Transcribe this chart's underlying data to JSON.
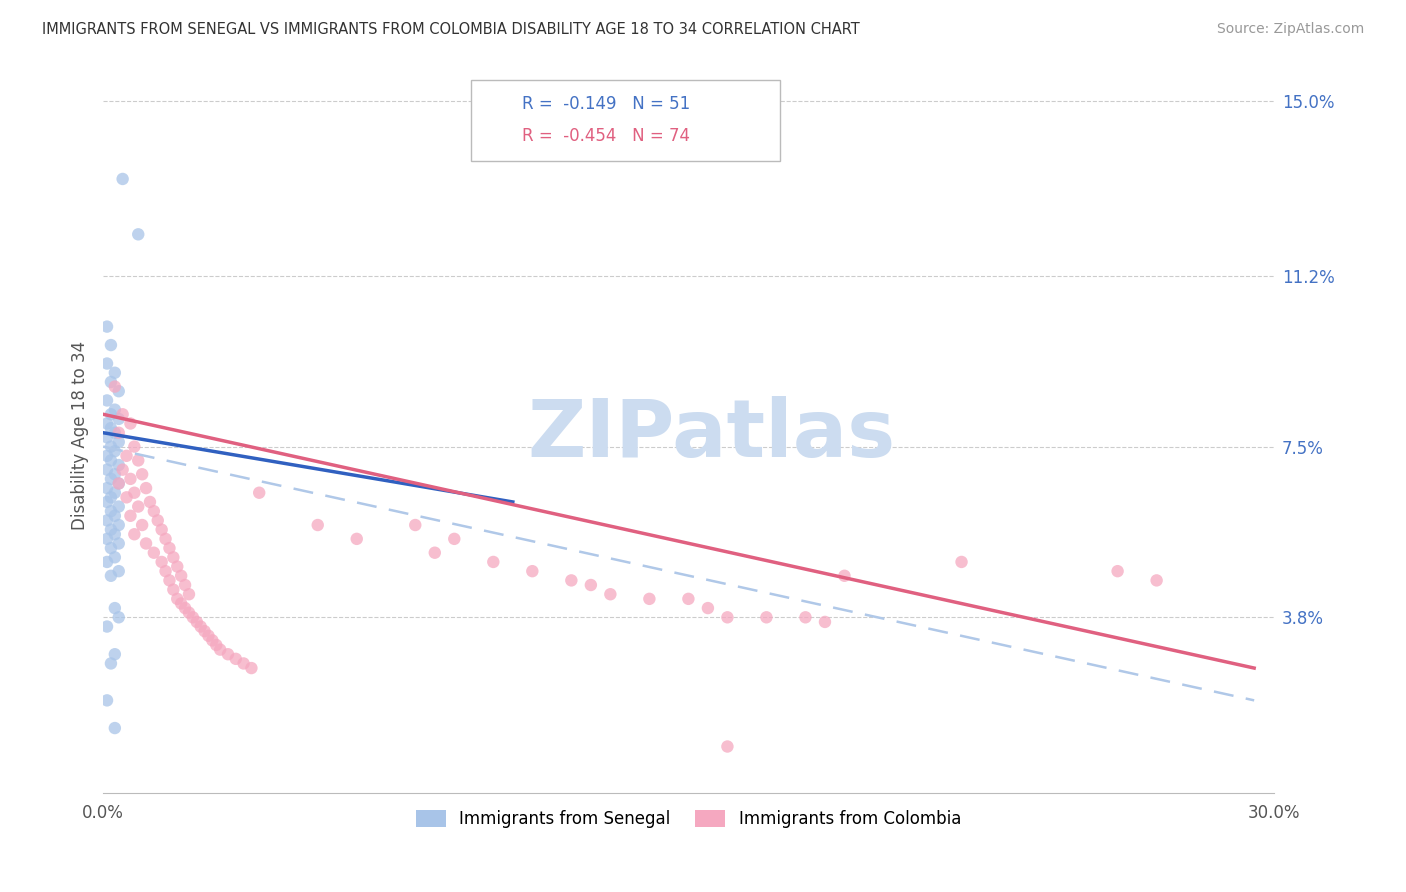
{
  "title": "IMMIGRANTS FROM SENEGAL VS IMMIGRANTS FROM COLOMBIA DISABILITY AGE 18 TO 34 CORRELATION CHART",
  "source": "Source: ZipAtlas.com",
  "ylabel": "Disability Age 18 to 34",
  "xlim": [
    0.0,
    0.3
  ],
  "ylim": [
    0.0,
    0.155
  ],
  "ytick_positions": [
    0.038,
    0.075,
    0.112,
    0.15
  ],
  "ytick_labels": [
    "3.8%",
    "7.5%",
    "11.2%",
    "15.0%"
  ],
  "legend_senegal_R": "-0.149",
  "legend_senegal_N": "51",
  "legend_colombia_R": "-0.454",
  "legend_colombia_N": "74",
  "color_senegal": "#a8c4e8",
  "color_colombia": "#f5a8c0",
  "line_color_senegal": "#3060c0",
  "line_color_colombia": "#e06080",
  "line_color_dashed": "#b0c8e8",
  "watermark_color": "#ccdcf0",
  "senegal_line_x": [
    0.0,
    0.105
  ],
  "senegal_line_y": [
    0.078,
    0.063
  ],
  "colombia_line_x": [
    0.0,
    0.295
  ],
  "colombia_line_y": [
    0.082,
    0.027
  ],
  "dashed_line_x": [
    0.0,
    0.295
  ],
  "dashed_line_y": [
    0.075,
    0.02
  ],
  "senegal_points": [
    [
      0.005,
      0.133
    ],
    [
      0.009,
      0.121
    ],
    [
      0.001,
      0.101
    ],
    [
      0.002,
      0.097
    ],
    [
      0.001,
      0.093
    ],
    [
      0.003,
      0.091
    ],
    [
      0.002,
      0.089
    ],
    [
      0.004,
      0.087
    ],
    [
      0.001,
      0.085
    ],
    [
      0.003,
      0.083
    ],
    [
      0.002,
      0.082
    ],
    [
      0.004,
      0.081
    ],
    [
      0.001,
      0.08
    ],
    [
      0.002,
      0.079
    ],
    [
      0.003,
      0.078
    ],
    [
      0.001,
      0.077
    ],
    [
      0.004,
      0.076
    ],
    [
      0.002,
      0.075
    ],
    [
      0.003,
      0.074
    ],
    [
      0.001,
      0.073
    ],
    [
      0.002,
      0.072
    ],
    [
      0.004,
      0.071
    ],
    [
      0.001,
      0.07
    ],
    [
      0.003,
      0.069
    ],
    [
      0.002,
      0.068
    ],
    [
      0.004,
      0.067
    ],
    [
      0.001,
      0.066
    ],
    [
      0.003,
      0.065
    ],
    [
      0.002,
      0.064
    ],
    [
      0.001,
      0.063
    ],
    [
      0.004,
      0.062
    ],
    [
      0.002,
      0.061
    ],
    [
      0.003,
      0.06
    ],
    [
      0.001,
      0.059
    ],
    [
      0.004,
      0.058
    ],
    [
      0.002,
      0.057
    ],
    [
      0.003,
      0.056
    ],
    [
      0.001,
      0.055
    ],
    [
      0.004,
      0.054
    ],
    [
      0.002,
      0.053
    ],
    [
      0.003,
      0.051
    ],
    [
      0.001,
      0.05
    ],
    [
      0.004,
      0.048
    ],
    [
      0.002,
      0.047
    ],
    [
      0.003,
      0.04
    ],
    [
      0.004,
      0.038
    ],
    [
      0.001,
      0.036
    ],
    [
      0.003,
      0.03
    ],
    [
      0.002,
      0.028
    ],
    [
      0.001,
      0.02
    ],
    [
      0.003,
      0.014
    ]
  ],
  "colombia_points": [
    [
      0.003,
      0.088
    ],
    [
      0.005,
      0.082
    ],
    [
      0.007,
      0.08
    ],
    [
      0.004,
      0.078
    ],
    [
      0.008,
      0.075
    ],
    [
      0.006,
      0.073
    ],
    [
      0.009,
      0.072
    ],
    [
      0.005,
      0.07
    ],
    [
      0.01,
      0.069
    ],
    [
      0.007,
      0.068
    ],
    [
      0.004,
      0.067
    ],
    [
      0.011,
      0.066
    ],
    [
      0.008,
      0.065
    ],
    [
      0.006,
      0.064
    ],
    [
      0.012,
      0.063
    ],
    [
      0.009,
      0.062
    ],
    [
      0.013,
      0.061
    ],
    [
      0.007,
      0.06
    ],
    [
      0.014,
      0.059
    ],
    [
      0.01,
      0.058
    ],
    [
      0.015,
      0.057
    ],
    [
      0.008,
      0.056
    ],
    [
      0.016,
      0.055
    ],
    [
      0.011,
      0.054
    ],
    [
      0.017,
      0.053
    ],
    [
      0.013,
      0.052
    ],
    [
      0.018,
      0.051
    ],
    [
      0.015,
      0.05
    ],
    [
      0.019,
      0.049
    ],
    [
      0.016,
      0.048
    ],
    [
      0.02,
      0.047
    ],
    [
      0.017,
      0.046
    ],
    [
      0.021,
      0.045
    ],
    [
      0.018,
      0.044
    ],
    [
      0.022,
      0.043
    ],
    [
      0.019,
      0.042
    ],
    [
      0.02,
      0.041
    ],
    [
      0.021,
      0.04
    ],
    [
      0.022,
      0.039
    ],
    [
      0.023,
      0.038
    ],
    [
      0.024,
      0.037
    ],
    [
      0.025,
      0.036
    ],
    [
      0.026,
      0.035
    ],
    [
      0.027,
      0.034
    ],
    [
      0.028,
      0.033
    ],
    [
      0.029,
      0.032
    ],
    [
      0.03,
      0.031
    ],
    [
      0.032,
      0.03
    ],
    [
      0.034,
      0.029
    ],
    [
      0.036,
      0.028
    ],
    [
      0.038,
      0.027
    ],
    [
      0.04,
      0.065
    ],
    [
      0.055,
      0.058
    ],
    [
      0.065,
      0.055
    ],
    [
      0.08,
      0.058
    ],
    [
      0.085,
      0.052
    ],
    [
      0.09,
      0.055
    ],
    [
      0.1,
      0.05
    ],
    [
      0.11,
      0.048
    ],
    [
      0.12,
      0.046
    ],
    [
      0.125,
      0.045
    ],
    [
      0.13,
      0.043
    ],
    [
      0.14,
      0.042
    ],
    [
      0.15,
      0.042
    ],
    [
      0.155,
      0.04
    ],
    [
      0.16,
      0.038
    ],
    [
      0.17,
      0.038
    ],
    [
      0.18,
      0.038
    ],
    [
      0.185,
      0.037
    ],
    [
      0.19,
      0.047
    ],
    [
      0.22,
      0.05
    ],
    [
      0.26,
      0.048
    ],
    [
      0.27,
      0.046
    ],
    [
      0.16,
      0.01
    ]
  ]
}
